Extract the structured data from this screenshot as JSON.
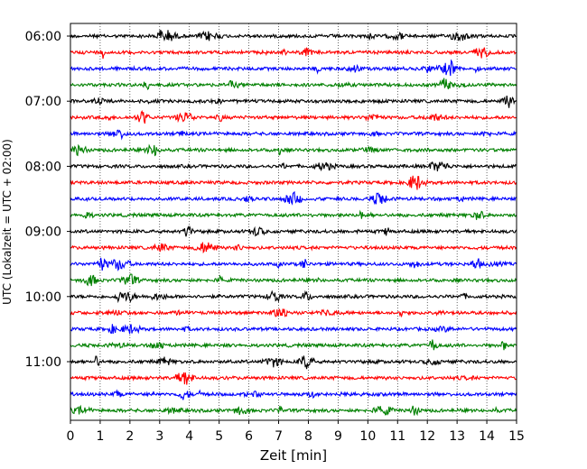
{
  "chart_data": {
    "type": "line",
    "title": "",
    "xlabel": "Zeit  [min]",
    "ylabel": "UTC (Lokalzeit = UTC + 02:00)",
    "xlim": [
      0,
      15
    ],
    "x_ticks": [
      0,
      1,
      2,
      3,
      4,
      5,
      6,
      7,
      8,
      9,
      10,
      11,
      12,
      13,
      14,
      15
    ],
    "x_tick_labels": [
      "0",
      "1",
      "2",
      "3",
      "4",
      "5",
      "6",
      "7",
      "8",
      "9",
      "10",
      "11",
      "12",
      "13",
      "14",
      "15"
    ],
    "y_ticks": [
      "06:00",
      "07:00",
      "08:00",
      "09:00",
      "10:00",
      "11:00"
    ],
    "grid": "vertical dotted",
    "series": [
      {
        "time": "06:00",
        "color": "#000000"
      },
      {
        "time": "06:15",
        "color": "#ff0000"
      },
      {
        "time": "06:30",
        "color": "#0000ff"
      },
      {
        "time": "06:45",
        "color": "#008000"
      },
      {
        "time": "07:00",
        "color": "#000000"
      },
      {
        "time": "07:15",
        "color": "#ff0000"
      },
      {
        "time": "07:30",
        "color": "#0000ff"
      },
      {
        "time": "07:45",
        "color": "#008000"
      },
      {
        "time": "08:00",
        "color": "#000000"
      },
      {
        "time": "08:15",
        "color": "#ff0000"
      },
      {
        "time": "08:30",
        "color": "#0000ff"
      },
      {
        "time": "08:45",
        "color": "#008000"
      },
      {
        "time": "09:00",
        "color": "#000000"
      },
      {
        "time": "09:15",
        "color": "#ff0000"
      },
      {
        "time": "09:30",
        "color": "#0000ff"
      },
      {
        "time": "09:45",
        "color": "#008000"
      },
      {
        "time": "10:00",
        "color": "#000000"
      },
      {
        "time": "10:15",
        "color": "#ff0000"
      },
      {
        "time": "10:30",
        "color": "#0000ff"
      },
      {
        "time": "10:45",
        "color": "#008000"
      },
      {
        "time": "11:00",
        "color": "#000000"
      },
      {
        "time": "11:15",
        "color": "#ff0000"
      },
      {
        "time": "11:30",
        "color": "#0000ff"
      },
      {
        "time": "11:45",
        "color": "#008000"
      }
    ]
  }
}
